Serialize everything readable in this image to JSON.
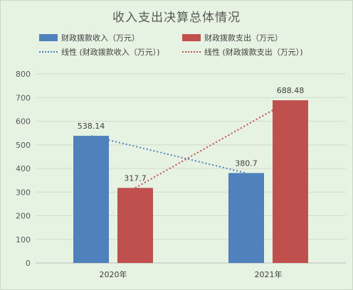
{
  "chart_data": {
    "type": "bar",
    "title": "收入支出决算总体情况",
    "categories": [
      "2020年",
      "2021年"
    ],
    "series": [
      {
        "name": "财政拨款收入（万元）",
        "values": [
          538.14,
          380.7
        ],
        "color": "#4f81bd"
      },
      {
        "name": "财政拨款支出（万元）",
        "values": [
          317.7,
          688.48
        ],
        "color": "#c0504d"
      }
    ],
    "trendlines": [
      {
        "name": "线性 (财政拨款收入（万元）)",
        "color": "#4f81bd",
        "style": "dotted"
      },
      {
        "name": "线性 (财政拨款支出（万元）)",
        "color": "#c0504d",
        "style": "dotted"
      }
    ],
    "data_labels": [
      [
        "538.14",
        "380.7"
      ],
      [
        "317.7",
        "688.48"
      ]
    ],
    "ylim": [
      0,
      800
    ],
    "yticks": [
      0,
      100,
      200,
      300,
      400,
      500,
      600,
      700,
      800
    ],
    "grid": true,
    "legend_position": "top"
  }
}
